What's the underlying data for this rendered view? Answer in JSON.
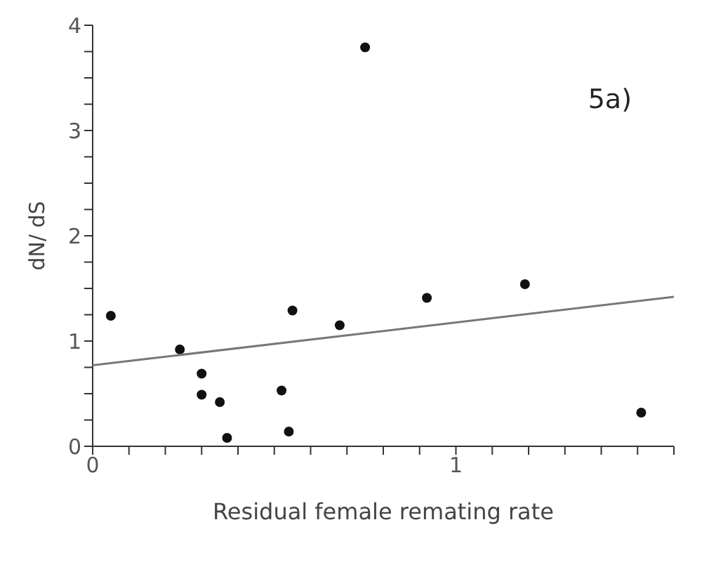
{
  "chart_data": {
    "type": "scatter",
    "xlabel": "Residual female remating rate",
    "ylabel": "dN/ dS",
    "annotations": [
      "5a)"
    ],
    "xlim": [
      0,
      1.6
    ],
    "ylim": [
      0,
      4
    ],
    "xticks": [
      0,
      {
        "value": 0.1,
        "label": null
      },
      {
        "value": 0.2,
        "label": null
      },
      {
        "value": 0.3,
        "label": null
      },
      {
        "value": 0.4,
        "label": null
      },
      {
        "value": 0.5,
        "label": null
      },
      {
        "value": 0.6,
        "label": null
      },
      {
        "value": 0.7,
        "label": null
      },
      {
        "value": 0.8,
        "label": null
      },
      {
        "value": 0.9,
        "label": null
      },
      1,
      {
        "value": 1.1,
        "label": null
      },
      {
        "value": 1.2,
        "label": null
      },
      {
        "value": 1.3,
        "label": null
      },
      {
        "value": 1.4,
        "label": null
      },
      {
        "value": 1.5,
        "label": null
      },
      {
        "value": 1.6,
        "label": null
      }
    ],
    "yticks": [
      0,
      {
        "value": 0.25,
        "label": null
      },
      {
        "value": 0.5,
        "label": null
      },
      {
        "value": 0.75,
        "label": null
      },
      1,
      {
        "value": 1.25,
        "label": null
      },
      {
        "value": 1.5,
        "label": null
      },
      {
        "value": 1.75,
        "label": null
      },
      2,
      {
        "value": 2.25,
        "label": null
      },
      {
        "value": 2.5,
        "label": null
      },
      {
        "value": 2.75,
        "label": null
      },
      3,
      {
        "value": 3.25,
        "label": null
      },
      {
        "value": 3.5,
        "label": null
      },
      {
        "value": 3.75,
        "label": null
      },
      4
    ],
    "grid": false,
    "legend": false,
    "series": [
      {
        "type": "scatter",
        "color": "#111111",
        "marker": "circle",
        "x": [
          0.05,
          0.24,
          0.3,
          0.3,
          0.35,
          0.37,
          0.52,
          0.54,
          0.55,
          0.68,
          0.75,
          0.92,
          1.19,
          1.51
        ],
        "values": [
          1.24,
          0.92,
          0.69,
          0.49,
          0.42,
          0.08,
          0.53,
          0.14,
          1.29,
          1.15,
          3.79,
          1.41,
          1.54,
          0.32
        ]
      },
      {
        "type": "line",
        "color": "#777777",
        "marker": "none",
        "line_style": "solid",
        "x": [
          0,
          1.6
        ],
        "values": [
          0.77,
          1.42
        ]
      }
    ]
  }
}
